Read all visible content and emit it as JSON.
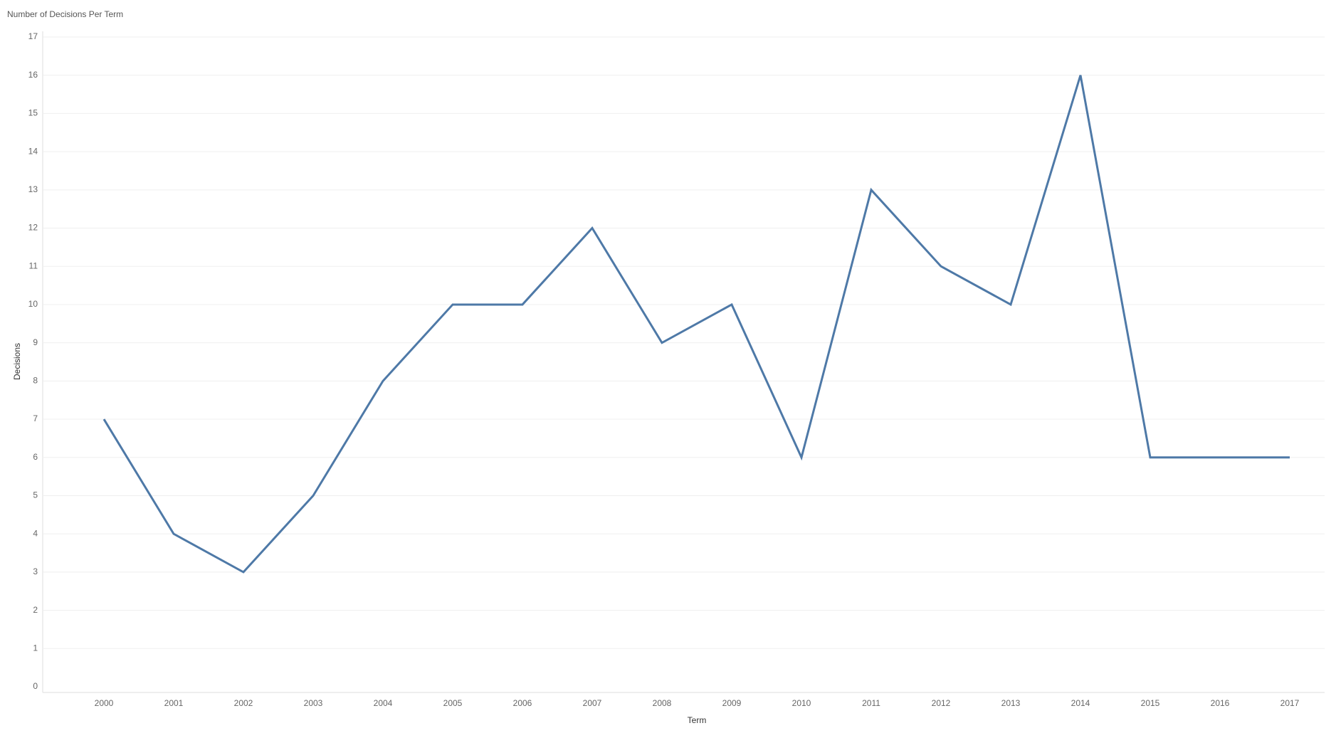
{
  "chart_data": {
    "type": "line",
    "title": "Number of Decisions Per Term",
    "x_label": "Term",
    "y_label": "Decisions",
    "categories": [
      "2000",
      "2001",
      "2002",
      "2003",
      "2004",
      "2005",
      "2006",
      "2007",
      "2008",
      "2009",
      "2010",
      "2011",
      "2012",
      "2013",
      "2014",
      "2015",
      "2016",
      "2017"
    ],
    "series": [
      {
        "name": "Decisions",
        "color": "#4e79a7",
        "values": [
          7,
          4,
          3,
          5,
          8,
          10,
          10,
          12,
          9,
          10,
          6,
          13,
          11,
          10,
          16,
          6,
          6,
          6
        ]
      }
    ],
    "ylim": [
      0,
      17
    ],
    "yticks": [
      0,
      1,
      2,
      3,
      4,
      5,
      6,
      7,
      8,
      9,
      10,
      11,
      12,
      13,
      14,
      15,
      16,
      17
    ],
    "grid": true
  }
}
